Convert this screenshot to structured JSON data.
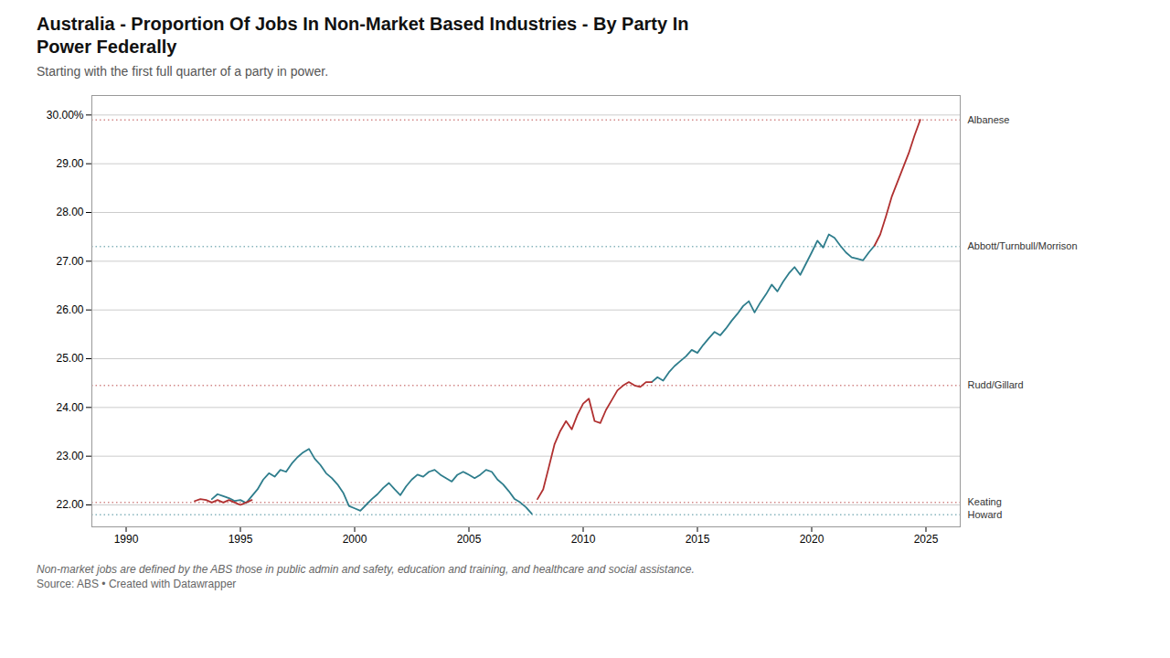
{
  "chart_data": {
    "type": "line",
    "title": "Australia - Proportion Of Jobs In Non-Market Based Industries - By Party In\nPower Federally",
    "subtitle": "Starting with the first full quarter of a party in power.",
    "footnote": "Non-market jobs are defined by the ABS those in public admin and safety, education and training, and healthcare and social assistance.",
    "source": "Source: ABS • Created with Datawrapper",
    "xlim": [
      1988.5,
      2026.5
    ],
    "xticks": [
      1990,
      1995,
      2000,
      2005,
      2010,
      2015,
      2020,
      2025
    ],
    "ylim": [
      21.55,
      30.4
    ],
    "yticks": [
      {
        "value": 22.0,
        "label": "22.00"
      },
      {
        "value": 23.0,
        "label": "23.00"
      },
      {
        "value": 24.0,
        "label": "24.00"
      },
      {
        "value": 25.0,
        "label": "25.00"
      },
      {
        "value": 26.0,
        "label": "26.00"
      },
      {
        "value": 27.0,
        "label": "27.00"
      },
      {
        "value": 28.0,
        "label": "28.00"
      },
      {
        "value": 29.0,
        "label": "29.00"
      },
      {
        "value": 30.0,
        "label": "30.00%"
      }
    ],
    "grid": true,
    "series": [
      {
        "color": "#2e7d8c",
        "line_style": "solid",
        "x": [
          1993.75,
          1994.0,
          1994.25,
          1994.5,
          1994.75,
          1995.0,
          1995.25,
          1995.5,
          1995.75,
          1996.0,
          1996.25,
          1996.5,
          1996.75,
          1997.0,
          1997.25,
          1997.5,
          1997.75,
          1998.0,
          1998.25,
          1998.5,
          1998.75,
          1999.0,
          1999.25,
          1999.5,
          1999.75,
          2000.0,
          2000.25,
          2000.5,
          2000.75,
          2001.0,
          2001.25,
          2001.5,
          2001.75,
          2002.0,
          2002.25,
          2002.5,
          2002.75,
          2003.0,
          2003.25,
          2003.5,
          2003.75,
          2004.0,
          2004.25,
          2004.5,
          2004.75,
          2005.0,
          2005.25,
          2005.5,
          2005.75,
          2006.0,
          2006.25,
          2006.5,
          2006.75,
          2007.0,
          2007.25,
          2007.5,
          2007.75
        ],
        "values": [
          22.12,
          22.22,
          22.18,
          22.14,
          22.08,
          22.1,
          22.04,
          22.18,
          22.32,
          22.52,
          22.65,
          22.58,
          22.72,
          22.68,
          22.85,
          22.98,
          23.08,
          23.15,
          22.95,
          22.82,
          22.65,
          22.55,
          22.42,
          22.25,
          21.98,
          21.93,
          21.88,
          22.0,
          22.12,
          22.22,
          22.35,
          22.45,
          22.32,
          22.2,
          22.38,
          22.52,
          22.62,
          22.58,
          22.68,
          22.72,
          22.62,
          22.55,
          22.48,
          22.62,
          22.68,
          22.62,
          22.55,
          22.62,
          22.72,
          22.68,
          22.52,
          22.42,
          22.28,
          22.12,
          22.05,
          21.95,
          21.82
        ]
      },
      {
        "color": "#2e7d8c",
        "line_style": "solid",
        "x": [
          2013.0,
          2013.25,
          2013.5,
          2013.75,
          2014.0,
          2014.25,
          2014.5,
          2014.75,
          2015.0,
          2015.25,
          2015.5,
          2015.75,
          2016.0,
          2016.25,
          2016.5,
          2016.75,
          2017.0,
          2017.25,
          2017.5,
          2017.75,
          2018.0,
          2018.25,
          2018.5,
          2018.75,
          2019.0,
          2019.25,
          2019.5,
          2019.75,
          2020.0,
          2020.25,
          2020.5,
          2020.75,
          2021.0,
          2021.25,
          2021.5,
          2021.75,
          2022.0,
          2022.25,
          2022.5,
          2022.75
        ],
        "values": [
          24.52,
          24.62,
          24.55,
          24.72,
          24.85,
          24.95,
          25.05,
          25.18,
          25.12,
          25.28,
          25.42,
          25.55,
          25.48,
          25.62,
          25.78,
          25.92,
          26.08,
          26.18,
          25.95,
          26.15,
          26.32,
          26.52,
          26.38,
          26.58,
          26.75,
          26.88,
          26.72,
          26.95,
          27.18,
          27.42,
          27.28,
          27.55,
          27.48,
          27.32,
          27.18,
          27.08,
          27.05,
          27.02,
          27.18,
          27.32
        ]
      },
      {
        "color": "#b03030",
        "line_style": "solid",
        "x": [
          1993.0,
          1993.25,
          1993.5,
          1993.75,
          1994.0,
          1994.25,
          1994.5,
          1994.75,
          1995.0,
          1995.25,
          1995.5
        ],
        "values": [
          22.08,
          22.12,
          22.1,
          22.05,
          22.1,
          22.05,
          22.1,
          22.05,
          22.0,
          22.05,
          22.1
        ]
      },
      {
        "color": "#b03030",
        "line_style": "solid",
        "x": [
          2008.0,
          2008.25,
          2008.5,
          2008.75,
          2009.0,
          2009.25,
          2009.5,
          2009.75,
          2010.0,
          2010.25,
          2010.5,
          2010.75,
          2011.0,
          2011.25,
          2011.5,
          2011.75,
          2012.0,
          2012.25,
          2012.5,
          2012.75,
          2013.0
        ],
        "values": [
          22.12,
          22.32,
          22.78,
          23.25,
          23.52,
          23.72,
          23.55,
          23.85,
          24.08,
          24.18,
          23.72,
          23.68,
          23.95,
          24.15,
          24.35,
          24.45,
          24.52,
          24.45,
          24.42,
          24.52,
          24.52
        ]
      },
      {
        "color": "#b03030",
        "line_style": "solid",
        "x": [
          2022.75,
          2023.0,
          2023.25,
          2023.5,
          2023.75,
          2024.0,
          2024.25,
          2024.5,
          2024.75
        ],
        "values": [
          27.32,
          27.55,
          27.92,
          28.32,
          28.62,
          28.92,
          29.22,
          29.58,
          29.9
        ]
      }
    ],
    "annotations": [
      {
        "text": "Keating",
        "y": 22.05,
        "color": "#b03030",
        "line_style": "dotted"
      },
      {
        "text": "Howard",
        "y": 21.8,
        "color": "#2e7d8c",
        "line_style": "dotted"
      },
      {
        "text": "Rudd/Gillard",
        "y": 24.45,
        "color": "#b03030",
        "line_style": "dotted"
      },
      {
        "text": "Abbott/Turnbull/Morrison",
        "y": 27.3,
        "color": "#2e7d8c",
        "line_style": "dotted"
      },
      {
        "text": "Albanese",
        "y": 29.9,
        "color": "#b03030",
        "line_style": "dotted"
      }
    ]
  }
}
